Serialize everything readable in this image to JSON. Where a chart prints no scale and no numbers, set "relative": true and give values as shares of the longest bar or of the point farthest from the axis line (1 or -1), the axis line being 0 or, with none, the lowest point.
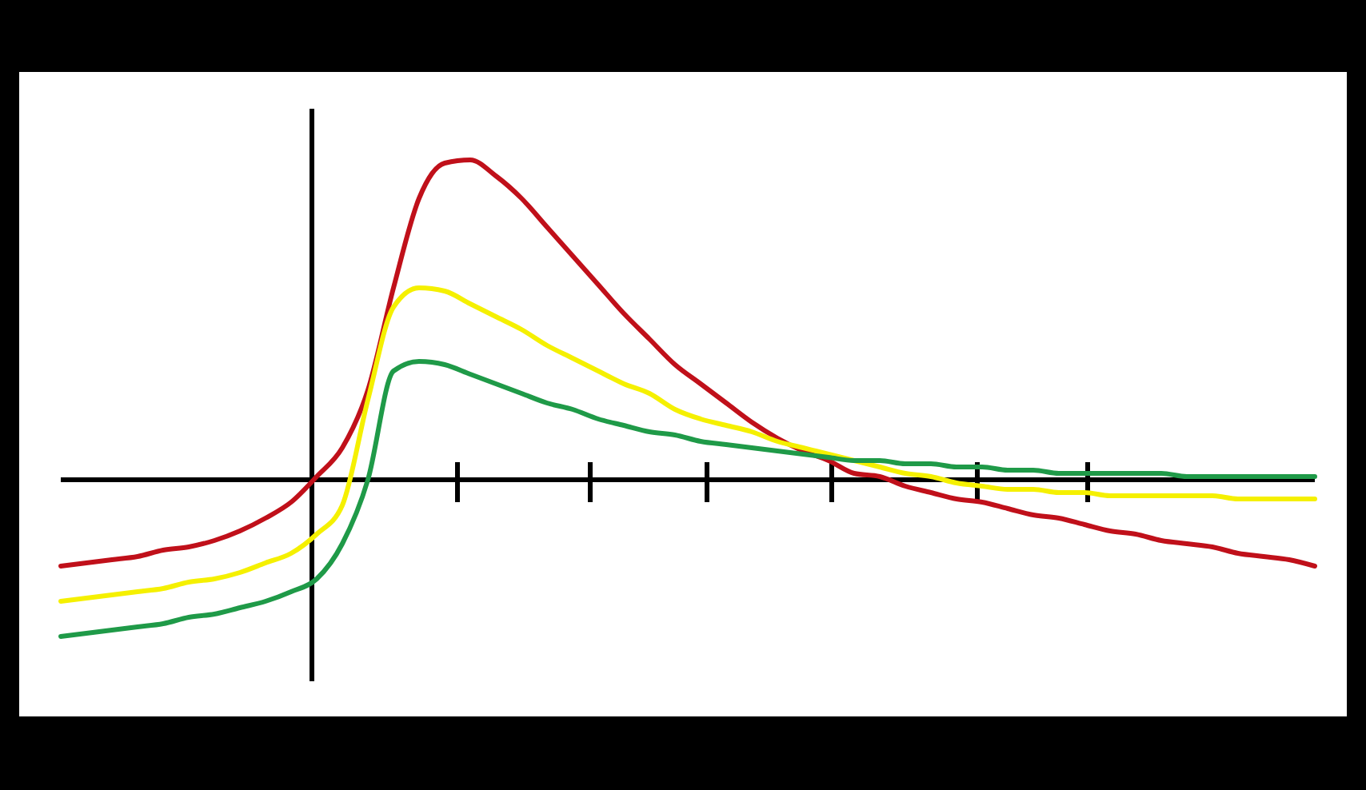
{
  "chart_data": {
    "type": "line",
    "relative": true,
    "categories": [
      null,
      null,
      null,
      null,
      null,
      null,
      null,
      null,
      null,
      null,
      null,
      null,
      null,
      null,
      null,
      null,
      null,
      null,
      null,
      null,
      null,
      null,
      null,
      null,
      null,
      null,
      null,
      null,
      null,
      null,
      null,
      null,
      null,
      null,
      null,
      null,
      null,
      null,
      null,
      null,
      null,
      null,
      null,
      null,
      null,
      null,
      null,
      null,
      null,
      null
    ],
    "series": [
      {
        "color": "#c0101a",
        "values": [
          -0.27,
          -0.26,
          -0.25,
          -0.24,
          -0.22,
          -0.21,
          -0.19,
          -0.16,
          -0.12,
          -0.07,
          0.01,
          0.1,
          0.28,
          0.6,
          0.88,
          0.99,
          1,
          0.95,
          0.88,
          0.79,
          0.7,
          0.61,
          0.52,
          0.44,
          0.36,
          0.3,
          0.24,
          0.18,
          0.13,
          0.09,
          0.06,
          0.02,
          0.01,
          -0.02,
          -0.04,
          -0.06,
          -0.07,
          -0.09,
          -0.11,
          -0.12,
          -0.14,
          -0.16,
          -0.17,
          -0.19,
          -0.2,
          -0.21,
          -0.23,
          -0.24,
          -0.25,
          -0.27
        ]
      },
      {
        "color": "#f5f000",
        "values": [
          -0.38,
          -0.37,
          -0.36,
          -0.35,
          -0.34,
          -0.32,
          -0.31,
          -0.29,
          -0.26,
          -0.23,
          -0.17,
          -0.08,
          0.25,
          0.54,
          0.6,
          0.59,
          0.55,
          0.51,
          0.47,
          0.42,
          0.38,
          0.34,
          0.3,
          0.27,
          0.22,
          0.19,
          0.17,
          0.15,
          0.12,
          0.1,
          0.08,
          0.06,
          0.04,
          0.02,
          0.01,
          -0.01,
          -0.02,
          -0.03,
          -0.03,
          -0.04,
          -0.04,
          -0.05,
          -0.05,
          -0.05,
          -0.05,
          -0.05,
          -0.06,
          -0.06,
          -0.06,
          -0.06
        ]
      },
      {
        "color": "#1f9a48",
        "values": [
          -0.49,
          -0.48,
          -0.47,
          -0.46,
          -0.45,
          -0.43,
          -0.42,
          -0.4,
          -0.38,
          -0.35,
          -0.31,
          -0.2,
          0,
          0.34,
          0.37,
          0.36,
          0.33,
          0.3,
          0.27,
          0.24,
          0.22,
          0.19,
          0.17,
          0.15,
          0.14,
          0.12,
          0.11,
          0.1,
          0.09,
          0.08,
          0.07,
          0.06,
          0.06,
          0.05,
          0.05,
          0.04,
          0.04,
          0.03,
          0.03,
          0.02,
          0.02,
          0.02,
          0.02,
          0.02,
          0.01,
          0.01,
          0.01,
          0.01,
          0.01,
          0.01
        ]
      }
    ],
    "marker": "none",
    "line_style": "solid"
  }
}
